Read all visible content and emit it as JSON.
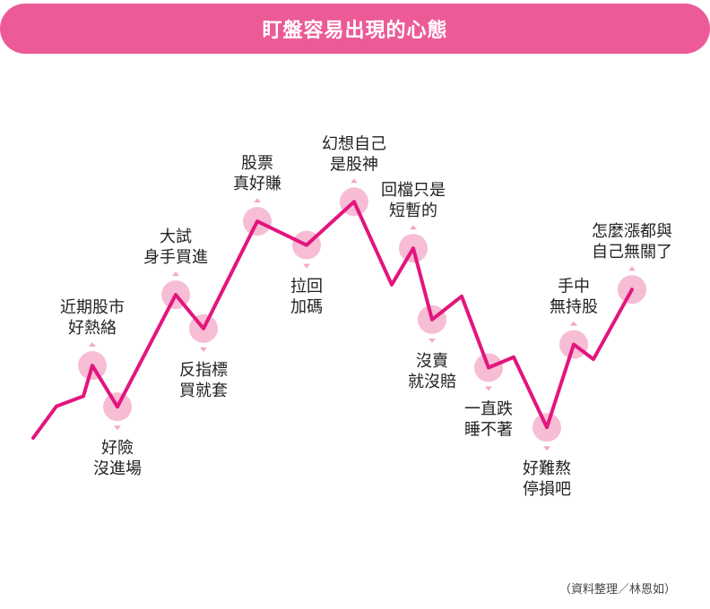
{
  "title": "盯盤容易出現的心態",
  "source": "（資料整理／林恩如）",
  "colors": {
    "accent": "#ec5b98",
    "line": "#e3157d",
    "dot": "#f6bdd5",
    "arrow": "#f4a9c8"
  },
  "chart_data": {
    "type": "line",
    "title": "盯盤容易出現的心態",
    "xlabel": "",
    "ylabel": "",
    "grid": false,
    "legend": "none",
    "series": [
      {
        "values": [
          0.0,
          6.0,
          7.9,
          13.7,
          5.9,
          27.1,
          20.7,
          41.0,
          36.5,
          44.7,
          29.0,
          35.9,
          22.4,
          26.8,
          13.3,
          15.3,
          2.0,
          17.7,
          14.9,
          28.1
        ]
      }
    ],
    "annotations": [
      {
        "label": [
          "近期股市",
          "好熱絡"
        ],
        "point": 3,
        "dot": true,
        "arrow": "up",
        "text_pos": "above"
      },
      {
        "label": [
          "好險",
          "沒進場"
        ],
        "point": 4,
        "dot": true,
        "arrow": "down",
        "text_pos": "below"
      },
      {
        "label": [
          "大試",
          "身手買進"
        ],
        "point": 5,
        "dot": true,
        "arrow": "up",
        "text_pos": "above"
      },
      {
        "label": [
          "反指標",
          "買就套"
        ],
        "point": 6,
        "dot": true,
        "arrow": "down",
        "text_pos": "below"
      },
      {
        "label": [
          "股票",
          "真好賺"
        ],
        "point": 7,
        "dot": true,
        "arrow": "up",
        "text_pos": "above"
      },
      {
        "label": [
          "拉回",
          "加碼"
        ],
        "point": 8,
        "dot": true,
        "arrow": "down",
        "text_pos": "below"
      },
      {
        "label": [
          "幻想自己",
          "是股神"
        ],
        "point": 9,
        "dot": true,
        "arrow": "up",
        "text_pos": "above"
      },
      {
        "label": [
          "回檔只是",
          "短暫的"
        ],
        "point": 11,
        "dot": true,
        "arrow": "up",
        "text_pos": "above"
      },
      {
        "label": [
          "沒賣",
          "就沒賠"
        ],
        "point": 12,
        "dot": true,
        "arrow": "down",
        "text_pos": "below"
      },
      {
        "label": [
          "一直跌",
          "睡不著"
        ],
        "point": 14,
        "dot": true,
        "arrow": "down",
        "text_pos": "below"
      },
      {
        "label": [
          "好難熬",
          "停損吧"
        ],
        "point": 16,
        "dot": true,
        "arrow": "down",
        "text_pos": "below"
      },
      {
        "label": [
          "手中",
          "無持股"
        ],
        "point": 17,
        "dot": true,
        "arrow": "up",
        "text_pos": "above"
      },
      {
        "label": [
          "怎麼漲都與",
          "自己無關了"
        ],
        "point": 19,
        "dot": true,
        "arrow": "up",
        "text_pos": "above"
      }
    ]
  }
}
